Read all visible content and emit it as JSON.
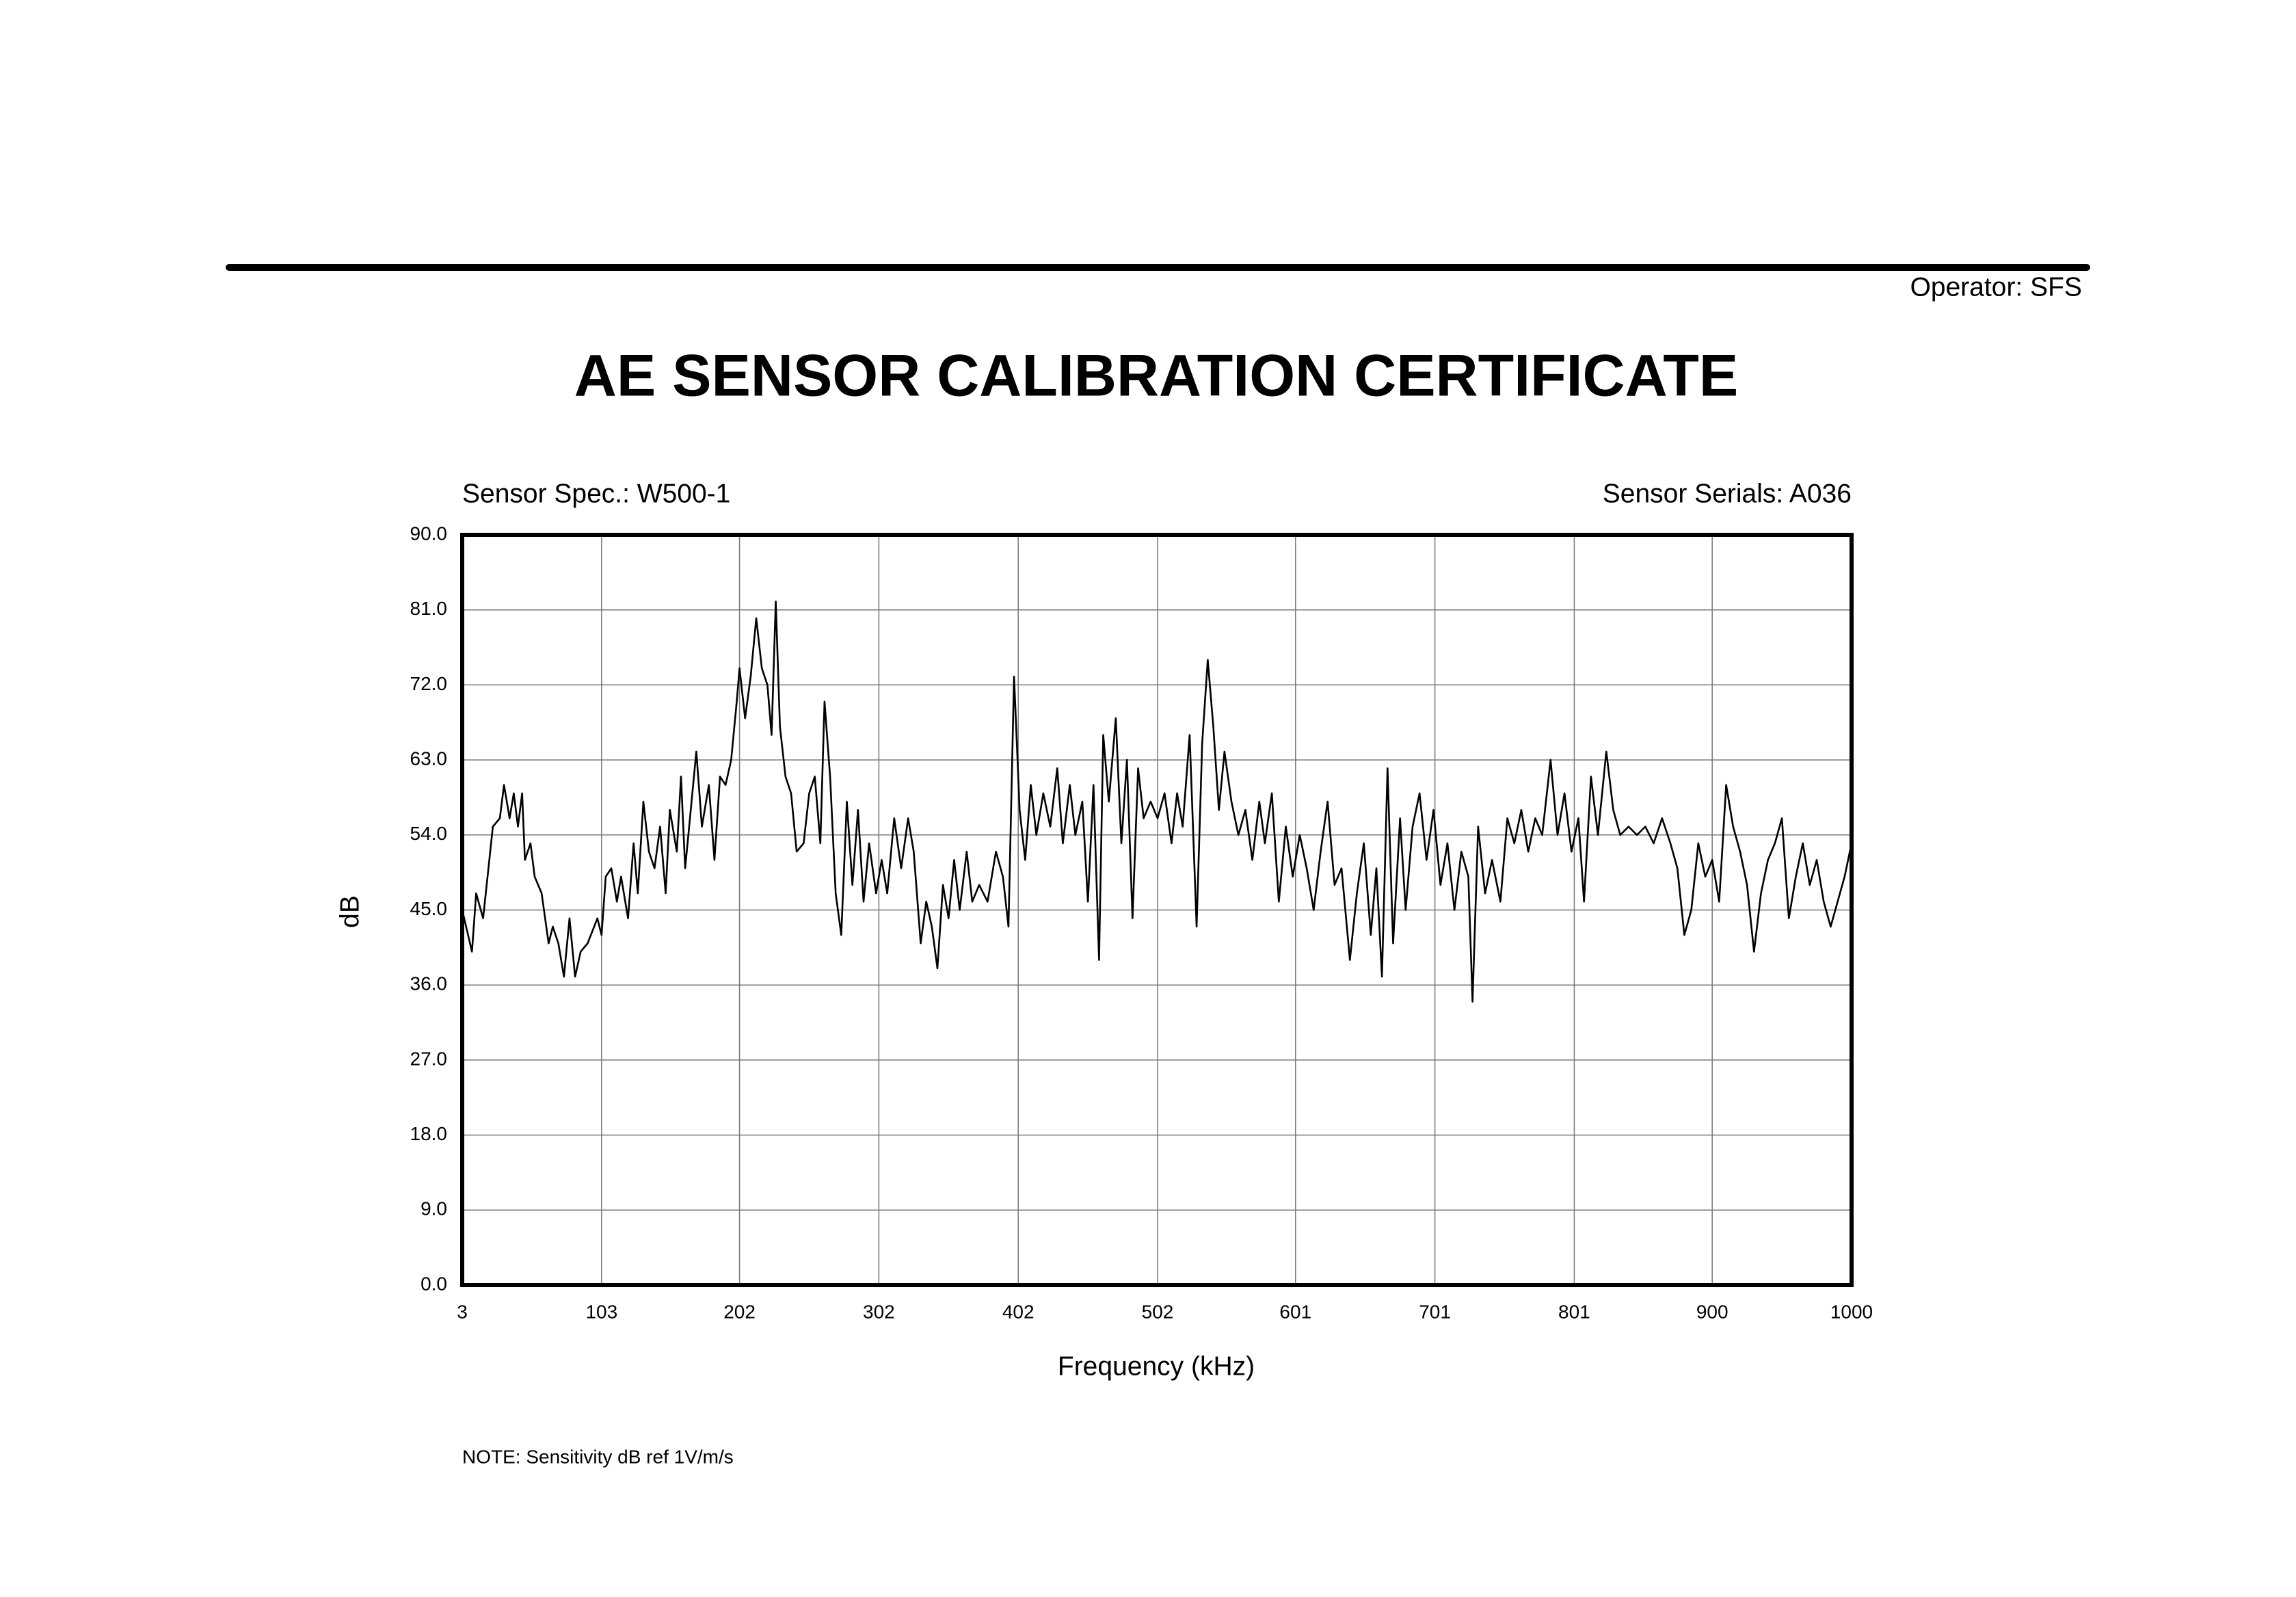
{
  "chart_data": {
    "type": "line",
    "operator": "Operator: SFS",
    "title": "AE SENSOR CALIBRATION CERTIFICATE",
    "sensor_spec": "Sensor Spec.: W500-1",
    "sensor_serials": "Sensor Serials: A036",
    "xlabel": "Frequency (kHz)",
    "ylabel": "dB",
    "note": "NOTE:  Sensitivity dB ref 1V/m/s",
    "xlim": [
      3,
      1000
    ],
    "ylim": [
      0,
      90
    ],
    "xticks": [
      3,
      103,
      202,
      302,
      402,
      502,
      601,
      701,
      801,
      900,
      1000
    ],
    "yticks": [
      {
        "value": 0,
        "label": "0.0"
      },
      {
        "value": 9,
        "label": "9.0"
      },
      {
        "value": 18,
        "label": "18.0"
      },
      {
        "value": 27,
        "label": "27.0"
      },
      {
        "value": 36,
        "label": "36.0"
      },
      {
        "value": 45,
        "label": "45.0"
      },
      {
        "value": 54,
        "label": "54.0"
      },
      {
        "value": 63,
        "label": "63.0"
      },
      {
        "value": 72,
        "label": "72.0"
      },
      {
        "value": 81,
        "label": "81.0"
      },
      {
        "value": 90,
        "label": "90.0"
      }
    ],
    "grid": true,
    "x": [
      3,
      10,
      13,
      18,
      25,
      30,
      33,
      37,
      40,
      43,
      46,
      48,
      52,
      55,
      60,
      65,
      68,
      72,
      76,
      80,
      84,
      88,
      93,
      100,
      103,
      106,
      110,
      114,
      117,
      122,
      126,
      129,
      133,
      137,
      141,
      145,
      149,
      152,
      157,
      160,
      163,
      167,
      171,
      175,
      180,
      184,
      188,
      192,
      196,
      200,
      202,
      206,
      210,
      214,
      218,
      222,
      225,
      228,
      231,
      235,
      239,
      243,
      248,
      252,
      256,
      260,
      263,
      267,
      271,
      275,
      279,
      283,
      287,
      291,
      295,
      300,
      304,
      308,
      313,
      318,
      323,
      327,
      332,
      336,
      340,
      344,
      348,
      352,
      356,
      360,
      365,
      369,
      374,
      380,
      386,
      391,
      395,
      399,
      403,
      407,
      411,
      415,
      420,
      425,
      430,
      434,
      439,
      443,
      448,
      452,
      456,
      460,
      463,
      467,
      472,
      476,
      480,
      484,
      488,
      492,
      497,
      502,
      507,
      512,
      516,
      520,
      525,
      530,
      534,
      538,
      542,
      546,
      550,
      555,
      560,
      565,
      570,
      575,
      579,
      584,
      589,
      594,
      599,
      604,
      609,
      614,
      619,
      624,
      629,
      634,
      640,
      645,
      650,
      655,
      659,
      663,
      667,
      671,
      676,
      680,
      685,
      690,
      695,
      700,
      705,
      710,
      715,
      720,
      725,
      728,
      732,
      737,
      742,
      748,
      753,
      758,
      763,
      768,
      773,
      778,
      784,
      789,
      794,
      799,
      804,
      808,
      813,
      818,
      824,
      829,
      834,
      840,
      846,
      852,
      858,
      864,
      870,
      875,
      880,
      885,
      890,
      895,
      900,
      905,
      910,
      915,
      920,
      925,
      930,
      935,
      940,
      945,
      950,
      955,
      960,
      965,
      970,
      975,
      980,
      985,
      990,
      995,
      1000
    ],
    "series": [
      {
        "name": "Sensitivity",
        "color": "#000000",
        "values": [
          45,
          40,
          47,
          44,
          55,
          56,
          60,
          56,
          59,
          55,
          59,
          51,
          53,
          49,
          47,
          41,
          43,
          41,
          37,
          44,
          37,
          40,
          41,
          44,
          42,
          49,
          50,
          46,
          49,
          44,
          53,
          47,
          58,
          52,
          50,
          55,
          47,
          57,
          52,
          61,
          50,
          57,
          64,
          55,
          60,
          51,
          61,
          60,
          63,
          70,
          74,
          68,
          73,
          80,
          74,
          72,
          66,
          82,
          67,
          61,
          59,
          52,
          53,
          59,
          61,
          53,
          70,
          61,
          47,
          42,
          58,
          48,
          57,
          46,
          53,
          47,
          51,
          47,
          56,
          50,
          56,
          52,
          41,
          46,
          43,
          38,
          48,
          44,
          51,
          45,
          52,
          46,
          48,
          46,
          52,
          49,
          43,
          73,
          57,
          51,
          60,
          54,
          59,
          55,
          62,
          53,
          60,
          54,
          58,
          46,
          60,
          39,
          66,
          58,
          68,
          53,
          63,
          44,
          62,
          56,
          58,
          56,
          59,
          53,
          59,
          55,
          66,
          43,
          65,
          75,
          67,
          57,
          64,
          58,
          54,
          57,
          51,
          58,
          53,
          59,
          46,
          55,
          49,
          54,
          50,
          45,
          52,
          58,
          48,
          50,
          39,
          47,
          53,
          42,
          50,
          37,
          62,
          41,
          56,
          45,
          55,
          59,
          51,
          57,
          48,
          53,
          45,
          52,
          49,
          34,
          55,
          47,
          51,
          46,
          56,
          53,
          57,
          52,
          56,
          54,
          63,
          54,
          59,
          52,
          56,
          46,
          61,
          54,
          64,
          57,
          54,
          55,
          54,
          55,
          53,
          56,
          53,
          50,
          42,
          45,
          53,
          49,
          51,
          46,
          60,
          55,
          52,
          48,
          40,
          47,
          51,
          53,
          56,
          44,
          49,
          53,
          48,
          51,
          46,
          43,
          46,
          49,
          53
        ]
      }
    ]
  }
}
